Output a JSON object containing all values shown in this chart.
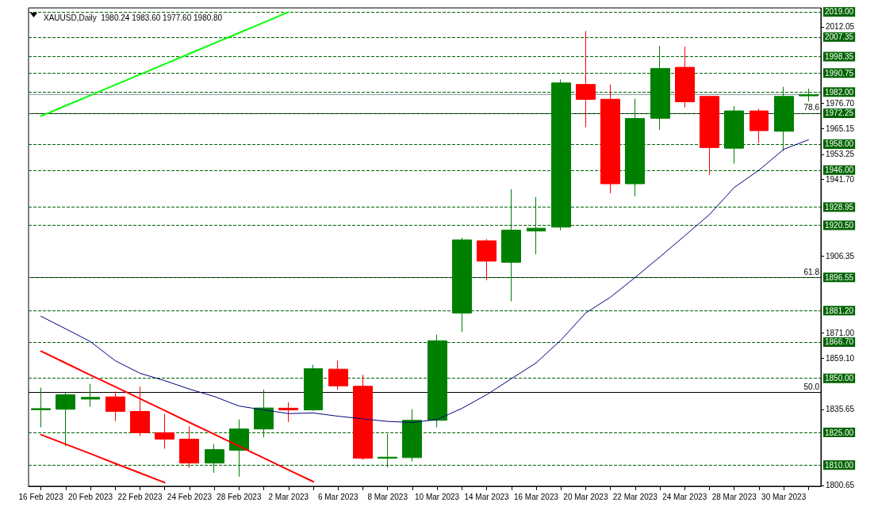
{
  "chart_data": {
    "type": "candlestick",
    "title": "XAUUSD,Daily  1980.24 1983.60 1977.60 1980.80",
    "categories": [
      "16 Feb 2023",
      null,
      "20 Feb 2023",
      null,
      "22 Feb 2023",
      null,
      "24 Feb 2023",
      null,
      "28 Feb 2023",
      null,
      "2 Mar 2023",
      null,
      "6 Mar 2023",
      null,
      "8 Mar 2023",
      null,
      "10 Mar 2023",
      null,
      "14 Mar 2023",
      null,
      "16 Mar 2023",
      null,
      "20 Mar 2023",
      null,
      "22 Mar 2023",
      null,
      "24 Mar 2023",
      null,
      "28 Mar 2023",
      null,
      "30 Mar 2023",
      null
    ],
    "ohlc": [
      [
        1835.5,
        1845.7,
        1827.4,
        1836.0
      ],
      [
        1835.7,
        1843.5,
        1818.6,
        1842.4
      ],
      [
        1840.4,
        1847.4,
        1836.9,
        1841.2
      ],
      [
        1841.4,
        1843.9,
        1830.3,
        1834.7
      ],
      [
        1834.7,
        1846.1,
        1823.4,
        1824.9
      ],
      [
        1824.9,
        1833.6,
        1817.5,
        1821.9
      ],
      [
        1821.9,
        1827.8,
        1808.7,
        1810.9
      ],
      [
        1810.9,
        1819.7,
        1806.4,
        1817.1
      ],
      [
        1816.8,
        1831.0,
        1804.6,
        1826.6
      ],
      [
        1826.6,
        1844.7,
        1822.7,
        1836.3
      ],
      [
        1836.2,
        1839.0,
        1829.8,
        1835.4
      ],
      [
        1835.4,
        1856.2,
        1835.0,
        1854.4
      ],
      [
        1854.2,
        1858.1,
        1844.6,
        1846.5
      ],
      [
        1846.3,
        1851.6,
        1812.3,
        1813.1
      ],
      [
        1813.1,
        1824.3,
        1809.0,
        1813.6
      ],
      [
        1813.4,
        1835.7,
        1811.7,
        1830.6
      ],
      [
        1830.6,
        1870.1,
        1827.4,
        1867.3
      ],
      [
        1880.1,
        1914.8,
        1871.3,
        1913.8
      ],
      [
        1913.4,
        1914.2,
        1895.2,
        1904.0
      ],
      [
        1903.5,
        1937.2,
        1885.5,
        1918.3
      ],
      [
        1917.9,
        1933.6,
        1907.2,
        1919.2
      ],
      [
        1919.7,
        1987.8,
        1918.2,
        1986.2
      ],
      [
        1985.5,
        2010.1,
        1965.8,
        1978.6
      ],
      [
        1978.7,
        1985.5,
        1935.3,
        1939.7
      ],
      [
        1939.7,
        1979.0,
        1933.9,
        1969.8
      ],
      [
        1969.9,
        2003.3,
        1964.6,
        1992.9
      ],
      [
        1993.4,
        2002.9,
        1974.9,
        1977.5
      ],
      [
        1980.0,
        1980.0,
        1943.8,
        1956.4
      ],
      [
        1956.1,
        1975.5,
        1949.0,
        1973.3
      ],
      [
        1973.3,
        1974.3,
        1958.5,
        1964.2
      ],
      [
        1963.9,
        1984.4,
        1954.8,
        1980.0
      ],
      [
        1980.24,
        1983.6,
        1977.6,
        1980.8
      ]
    ],
    "colors": [
      "#008000",
      "#008000",
      "#008000",
      "#ff0000",
      "#ff0000",
      "#ff0000",
      "#ff0000",
      "#008000",
      "#008000",
      "#008000",
      "#ff0000",
      "#008000",
      "#ff0000",
      "#ff0000",
      "#008000",
      "#008000",
      "#008000",
      "#008000",
      "#ff0000",
      "#008000",
      "#008000",
      "#008000",
      "#ff0000",
      "#ff0000",
      "#008000",
      "#008000",
      "#ff0000",
      "#ff0000",
      "#008000",
      "#ff0000",
      "#008000",
      "#008000"
    ],
    "series": [
      {
        "type": "line",
        "color": "#000080",
        "values": [
          1878.6,
          1872.8,
          1866.9,
          1858.1,
          1852.3,
          1848.9,
          1845.0,
          1841.6,
          1837.2,
          1835.4,
          1833.7,
          1834.0,
          1832.5,
          1831.3,
          1830.1,
          1829.6,
          1831.0,
          1836.1,
          1842.4,
          1849.8,
          1857.1,
          1867.6,
          1880.1,
          1887.4,
          1896.5,
          1906.0,
          1915.7,
          1925.5,
          1938.0,
          1946.0,
          1955.6,
          1960.0
        ]
      },
      {
        "type": "line",
        "color": "#00ff00",
        "values": [
          1970.9,
          1975.7,
          1980.5,
          1985.3,
          1990.1,
          1994.9,
          1999.7,
          2004.5,
          2009.3,
          2014.1,
          2018.9,
          null,
          null,
          null,
          null,
          null,
          null,
          null,
          null,
          null,
          null,
          null,
          null,
          null,
          null,
          null,
          null,
          null,
          null,
          null,
          null,
          null
        ]
      },
      {
        "type": "line",
        "color": "#ff0000",
        "values": [
          1862.5,
          1857.0,
          1851.5,
          1846.1,
          1840.6,
          1835.1,
          1829.6,
          1824.2,
          1818.7,
          1813.2,
          1807.7,
          1802.3,
          null,
          null,
          null,
          null,
          null,
          null,
          null,
          null,
          null,
          null,
          null,
          null,
          null,
          null,
          null,
          null,
          null,
          null,
          null,
          null
        ]
      },
      {
        "type": "line",
        "color": "#ff0000",
        "values": [
          1824.0,
          1819.6,
          1815.2,
          1810.7,
          1806.3,
          1801.9,
          null,
          null,
          null,
          null,
          null,
          null,
          null,
          null,
          null,
          null,
          null,
          null,
          null,
          null,
          null,
          null,
          null,
          null,
          null,
          null,
          null,
          null,
          null,
          null,
          null,
          null
        ]
      }
    ],
    "ylim": [
      1800.2,
      2020.8
    ],
    "yticks": [
      {
        "value": 1800.65,
        "label": "1800.65"
      },
      {
        "value": 1835.65,
        "label": "1835.65"
      },
      {
        "value": 1859.1,
        "label": "1859.10"
      },
      {
        "value": 1871,
        "label": "1871.00"
      },
      {
        "value": 1906.35,
        "label": "1906.35"
      },
      {
        "value": 1941.7,
        "label": "1941.70"
      },
      {
        "value": 1953.25,
        "label": "1953.25"
      },
      {
        "value": 1965.15,
        "label": "1965.15"
      },
      {
        "value": 1976.7,
        "label": "1976.70"
      },
      {
        "value": 2012.05,
        "label": "2012.05"
      }
    ],
    "ref_lines": [
      {
        "axis": "y",
        "value": 2019,
        "label": "2019.00",
        "color": "#006400",
        "line_style": "dashed"
      },
      {
        "axis": "y",
        "value": 2007.35,
        "label": "2007.35",
        "color": "#006400",
        "line_style": "dashed"
      },
      {
        "axis": "y",
        "value": 1998.35,
        "label": "1998.35",
        "color": "#006400",
        "line_style": "dashed"
      },
      {
        "axis": "y",
        "value": 1990.75,
        "label": "1990.75",
        "color": "#006400",
        "line_style": "dashed"
      },
      {
        "axis": "y",
        "value": 1982,
        "label": "1982.00",
        "color": "#006400",
        "line_style": "dashed"
      },
      {
        "axis": "y",
        "value": 1980.8,
        "color": "#8899aa",
        "line_style": "solid"
      },
      {
        "axis": "y",
        "value": 1972.25,
        "color": "#000000",
        "line_style": "solid"
      },
      {
        "axis": "y",
        "value": 1896.55,
        "color": "#000000",
        "line_style": "solid"
      },
      {
        "axis": "y",
        "value": 1843.4,
        "color": "#000000",
        "line_style": "solid"
      },
      {
        "axis": "y",
        "value": 1972.25,
        "label": "1972.25",
        "color": "#006400",
        "line_style": "dashed"
      },
      {
        "axis": "y",
        "value": 1958,
        "label": "1958.00",
        "color": "#006400",
        "line_style": "dashed"
      },
      {
        "axis": "y",
        "value": 1946,
        "label": "1946.00",
        "color": "#006400",
        "line_style": "dashed"
      },
      {
        "axis": "y",
        "value": 1928.95,
        "label": "1928.95",
        "color": "#006400",
        "line_style": "dashed"
      },
      {
        "axis": "y",
        "value": 1920.5,
        "label": "1920.50",
        "color": "#006400",
        "line_style": "dashed"
      },
      {
        "axis": "y",
        "value": 1896.55,
        "label": "1896.55",
        "color": "#006400",
        "line_style": "dashed"
      },
      {
        "axis": "y",
        "value": 1881.2,
        "label": "1881.20",
        "color": "#006400",
        "line_style": "dashed"
      },
      {
        "axis": "y",
        "value": 1866.7,
        "label": "1866.70",
        "color": "#006400",
        "line_style": "dashed"
      },
      {
        "axis": "y",
        "value": 1850,
        "label": "1850.00",
        "color": "#006400",
        "line_style": "dashed"
      },
      {
        "axis": "y",
        "value": 1825,
        "label": "1825.00",
        "color": "#006400",
        "line_style": "dashed"
      },
      {
        "axis": "y",
        "value": 1810,
        "label": "1810.00",
        "color": "#006400",
        "line_style": "dashed"
      }
    ],
    "annotations": [
      {
        "text": "78.6",
        "y": 1972.25
      },
      {
        "text": "61.8",
        "y": 1896.55
      },
      {
        "text": "50.0",
        "y": 1843.4
      }
    ],
    "grid": false
  }
}
